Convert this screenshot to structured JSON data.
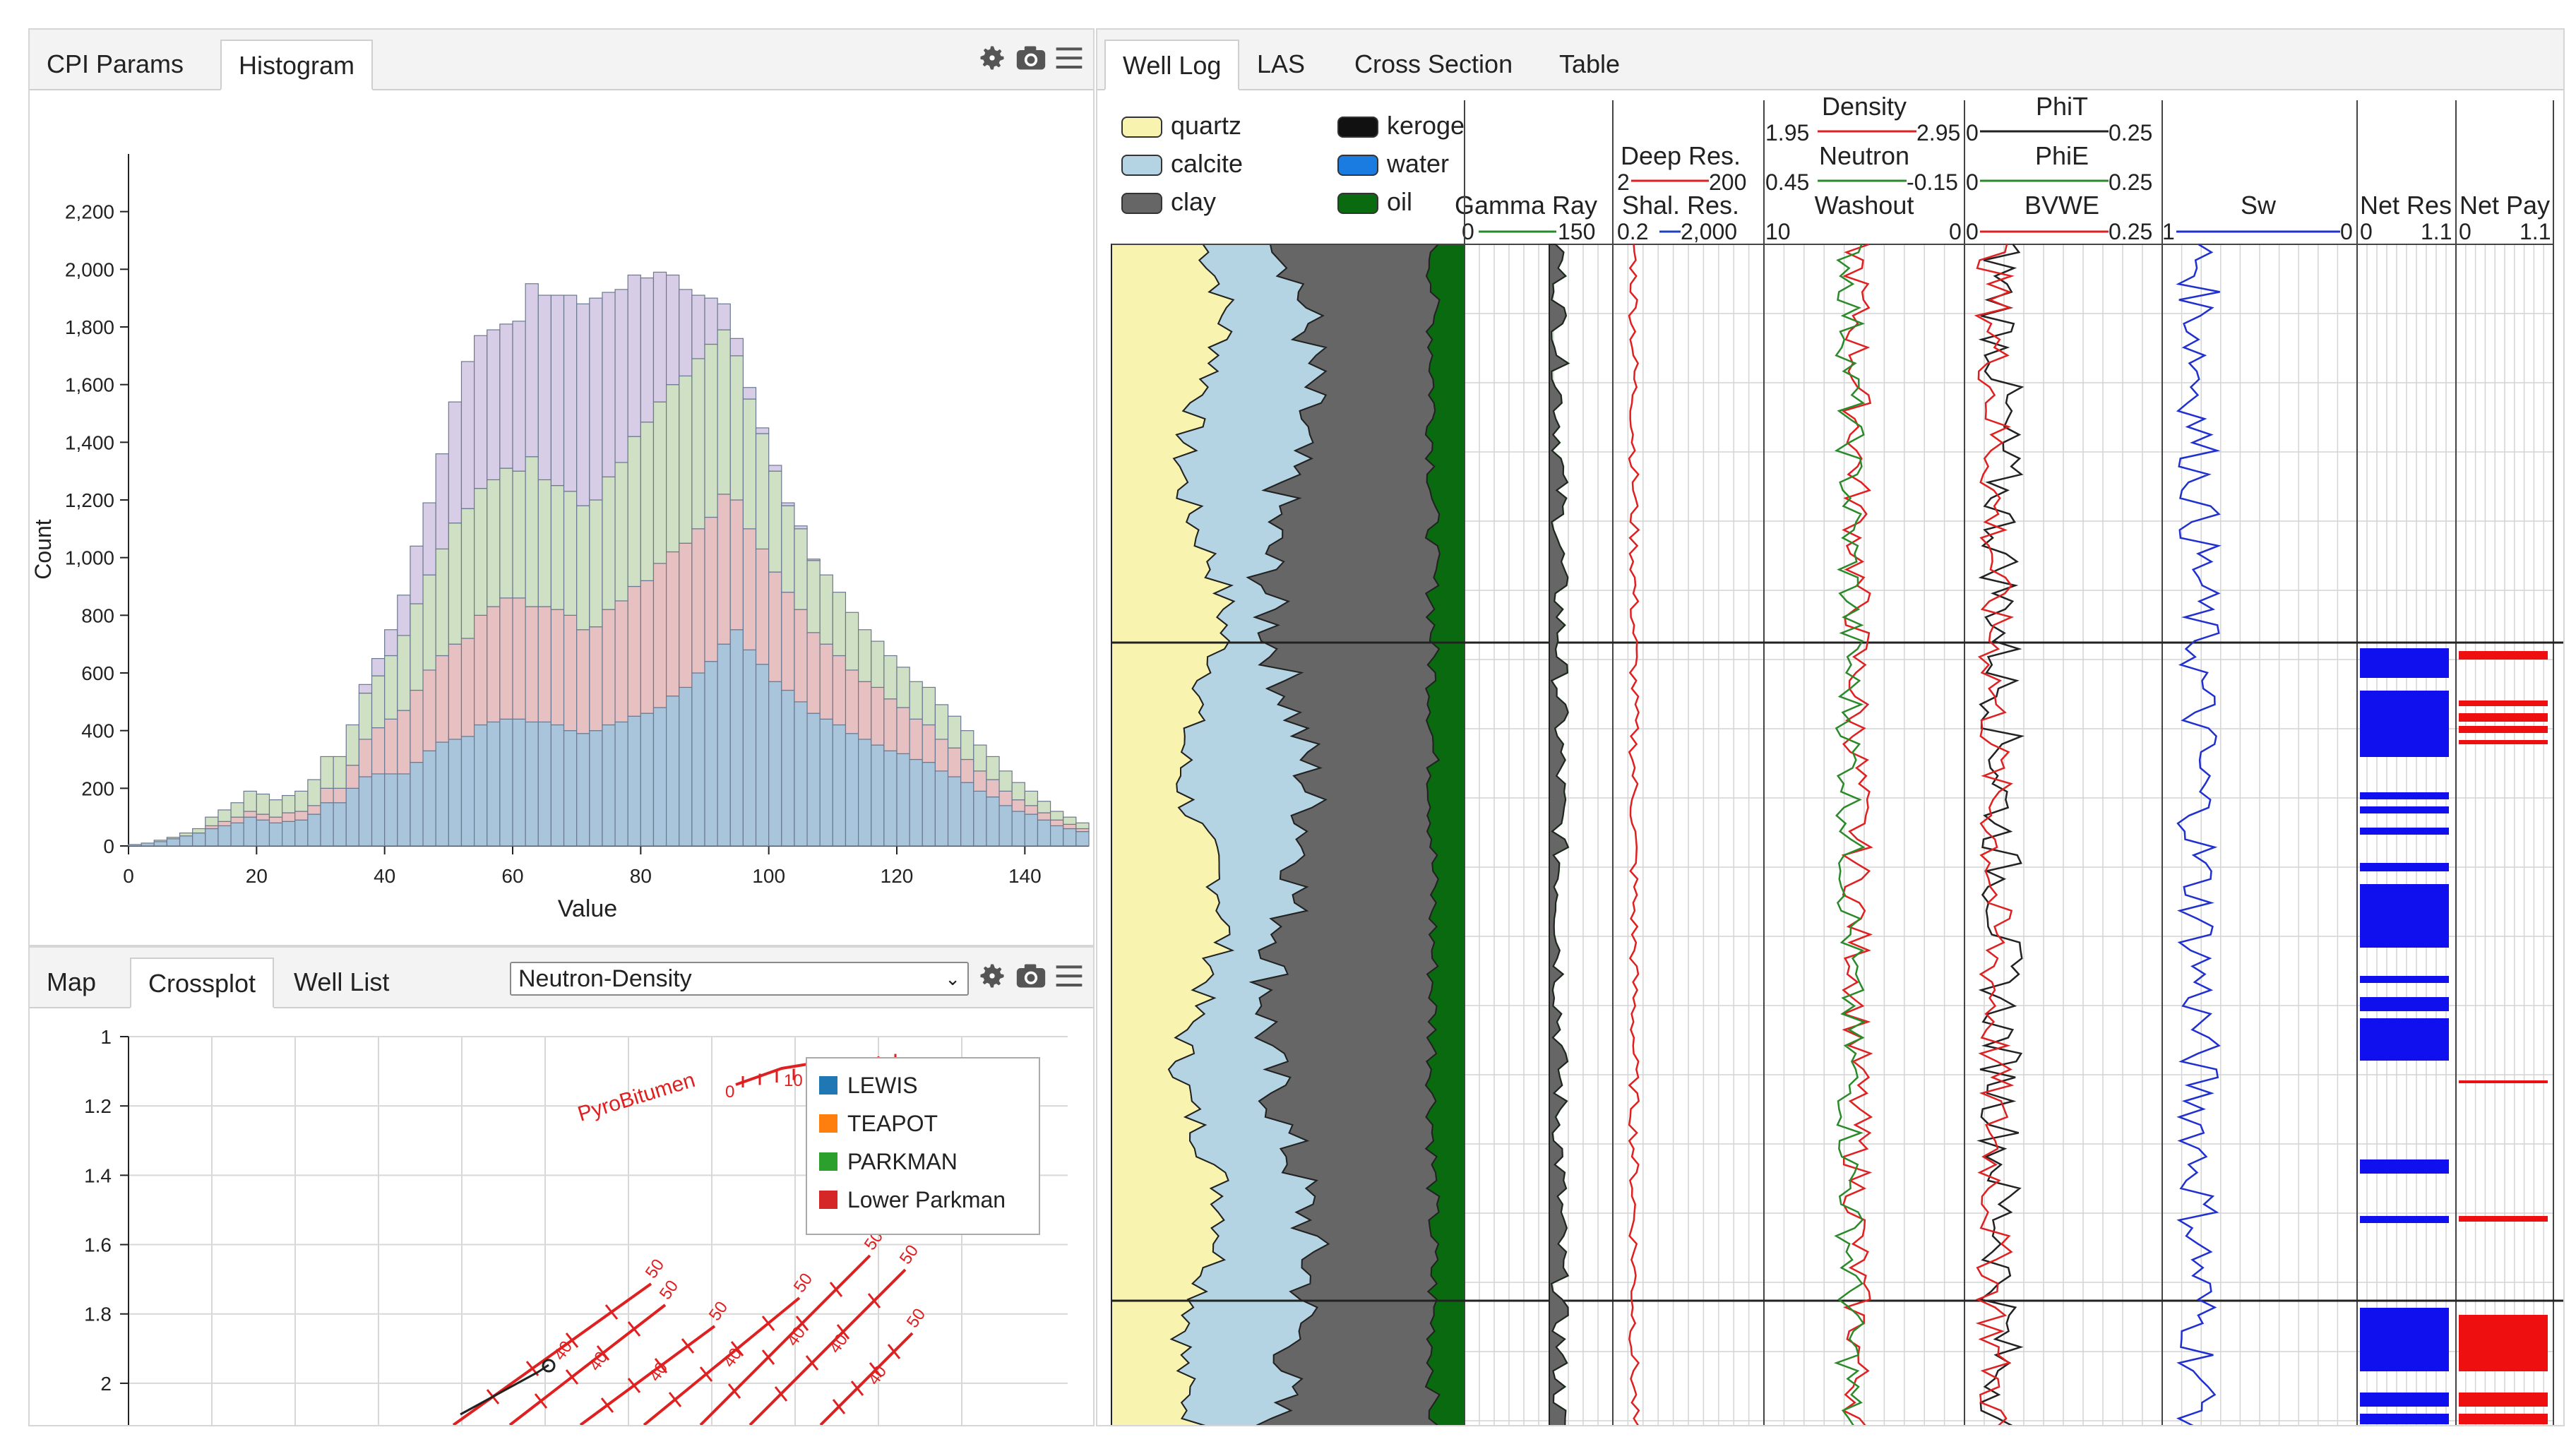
{
  "histogram_panel": {
    "tabs": [
      "CPI Params",
      "Histogram"
    ],
    "active_tab": "Histogram",
    "icons": [
      "gear-icon",
      "camera-icon",
      "menu-icon"
    ]
  },
  "crossplot_panel": {
    "tabs": [
      "Map",
      "Crossplot",
      "Well List"
    ],
    "active_tab": "Crossplot",
    "select_value": "Neutron-Density",
    "icons": [
      "gear-icon",
      "camera-icon",
      "menu-icon"
    ]
  },
  "welllog_panel": {
    "tabs": [
      "Well Log",
      "LAS",
      "Cross Section",
      "Table"
    ],
    "active_tab": "Well Log",
    "lithology_legend": [
      {
        "label": "quartz",
        "color": "#f8f4b0"
      },
      {
        "label": "calcite",
        "color": "#b4d4e3"
      },
      {
        "label": "clay",
        "color": "#666666"
      },
      {
        "label": "keroge",
        "color": "#111111"
      },
      {
        "label": "water",
        "color": "#1a7ce0"
      },
      {
        "label": "oil",
        "color": "#0a6a10"
      }
    ],
    "tracks": {
      "gamma": {
        "name": "Gamma Ray",
        "min": "0",
        "max": "150",
        "color": "#2a8a2a"
      },
      "resistivity": [
        {
          "name": "Deep Res.",
          "min": "2",
          "max": "200",
          "color": "#e02020"
        },
        {
          "name": "Shal. Res.",
          "min": "0.2",
          "max": "2,000",
          "color": "#2040c0"
        }
      ],
      "density_neutron": [
        {
          "name": "Density",
          "min": "1.95",
          "max": "2.95",
          "color": "#e02020"
        },
        {
          "name": "Neutron",
          "min": "0.45",
          "max": "-0.15",
          "color": "#2a8a2a"
        },
        {
          "name": "Washout",
          "min": "10",
          "max": "0",
          "color": "#777777"
        }
      ],
      "porosity": [
        {
          "name": "PhiT",
          "min": "0",
          "max": "0.25",
          "color": "#222222"
        },
        {
          "name": "PhiE",
          "min": "0",
          "max": "0.25",
          "color": "#2a8a2a"
        },
        {
          "name": "BVWE",
          "min": "0",
          "max": "0.25",
          "color": "#e02020"
        }
      ],
      "sw": {
        "name": "Sw",
        "min": "1",
        "max": "0",
        "color": "#2030d0"
      },
      "netres": {
        "name": "Net Res",
        "min": "0",
        "max": "1.1",
        "color": "#1010ee"
      },
      "netpay": {
        "name": "Net Pay",
        "min": "0",
        "max": "1.1",
        "color": "#ee1010"
      }
    }
  },
  "chart_data": [
    {
      "type": "bar",
      "subtype": "stacked-histogram",
      "title": "",
      "xlabel": "Value",
      "ylabel": "Count",
      "xlim": [
        0,
        150
      ],
      "ylim": [
        0,
        2400
      ],
      "xticks": [
        "0",
        "20",
        "40",
        "60",
        "80",
        "100",
        "120",
        "140"
      ],
      "yticks": [
        "0",
        "200",
        "400",
        "600",
        "800",
        "1,000",
        "1,200",
        "1,400",
        "1,600",
        "1,800",
        "2,000",
        "2,200"
      ],
      "bin_width": 2,
      "x": [
        1,
        3,
        5,
        7,
        9,
        11,
        13,
        15,
        17,
        19,
        21,
        23,
        25,
        27,
        29,
        31,
        33,
        35,
        37,
        39,
        41,
        43,
        45,
        47,
        49,
        51,
        53,
        55,
        57,
        59,
        61,
        63,
        65,
        67,
        69,
        71,
        73,
        75,
        77,
        79,
        81,
        83,
        85,
        87,
        89,
        91,
        93,
        95,
        97,
        99,
        101,
        103,
        105,
        107,
        109,
        111,
        113,
        115,
        117,
        119,
        121,
        123,
        125,
        127,
        129,
        131,
        133,
        135,
        137,
        139,
        141,
        143,
        145,
        147,
        149
      ],
      "series": [
        {
          "name": "blue",
          "color": "#a9c5dc",
          "values": [
            5,
            10,
            15,
            25,
            35,
            45,
            60,
            70,
            80,
            100,
            90,
            80,
            85,
            90,
            110,
            150,
            150,
            200,
            240,
            250,
            250,
            250,
            290,
            330,
            360,
            370,
            380,
            420,
            430,
            440,
            440,
            430,
            430,
            420,
            400,
            390,
            400,
            420,
            430,
            450,
            460,
            480,
            520,
            550,
            600,
            640,
            700,
            750,
            680,
            630,
            570,
            540,
            500,
            460,
            440,
            420,
            390,
            370,
            350,
            330,
            320,
            300,
            290,
            260,
            240,
            220,
            190,
            170,
            140,
            120,
            110,
            90,
            70,
            60,
            50
          ]
        },
        {
          "name": "red",
          "color": "#e7c1c1",
          "values": [
            0,
            0,
            0,
            0,
            0,
            0,
            10,
            15,
            20,
            20,
            20,
            20,
            30,
            30,
            30,
            50,
            50,
            80,
            130,
            160,
            190,
            220,
            250,
            280,
            300,
            330,
            340,
            380,
            400,
            420,
            420,
            400,
            400,
            400,
            400,
            360,
            360,
            400,
            420,
            450,
            460,
            500,
            500,
            500,
            500,
            500,
            520,
            450,
            420,
            400,
            380,
            340,
            320,
            280,
            260,
            240,
            220,
            200,
            200,
            180,
            160,
            140,
            130,
            110,
            100,
            80,
            70,
            60,
            50,
            40,
            30,
            25,
            20,
            15,
            10
          ]
        },
        {
          "name": "green",
          "color": "#cfe0c4",
          "values": [
            0,
            0,
            5,
            5,
            10,
            15,
            30,
            40,
            50,
            70,
            70,
            60,
            60,
            70,
            90,
            110,
            110,
            140,
            160,
            180,
            220,
            260,
            300,
            330,
            370,
            420,
            450,
            440,
            440,
            450,
            440,
            520,
            440,
            430,
            430,
            430,
            440,
            460,
            480,
            520,
            550,
            560,
            580,
            580,
            590,
            600,
            570,
            500,
            450,
            400,
            350,
            300,
            280,
            250,
            240,
            220,
            200,
            180,
            160,
            150,
            140,
            130,
            130,
            120,
            110,
            100,
            90,
            80,
            70,
            60,
            50,
            40,
            30,
            25,
            20
          ]
        },
        {
          "name": "purple",
          "color": "#d7cde6",
          "values": [
            0,
            0,
            0,
            0,
            0,
            0,
            0,
            0,
            0,
            0,
            0,
            0,
            0,
            0,
            0,
            0,
            0,
            0,
            30,
            60,
            90,
            140,
            200,
            250,
            330,
            420,
            510,
            530,
            520,
            500,
            520,
            600,
            640,
            660,
            680,
            700,
            700,
            640,
            600,
            560,
            500,
            450,
            380,
            300,
            220,
            160,
            90,
            60,
            40,
            20,
            20,
            10,
            10,
            5,
            0,
            0,
            0,
            0,
            0,
            0,
            0,
            0,
            0,
            0,
            0,
            0,
            0,
            0,
            0,
            0,
            0,
            0,
            0,
            0,
            0
          ]
        }
      ]
    },
    {
      "type": "scatter",
      "subtype": "neutron-density-crossplot",
      "title": "Neutron-Density",
      "ylim": [
        1,
        2.1
      ],
      "yticks": [
        "1",
        "1.2",
        "1.4",
        "1.6",
        "1.8",
        "2"
      ],
      "legend": [
        "LEWIS",
        "TEAPOT",
        "PARKMAN",
        "Lower Parkman"
      ],
      "legend_colors": [
        "#1f77b4",
        "#ff7f0e",
        "#2ca02c",
        "#d62728"
      ],
      "annotations": [
        "PyroBitumen",
        "0",
        "10",
        "20",
        "30",
        "40",
        "50"
      ]
    }
  ]
}
